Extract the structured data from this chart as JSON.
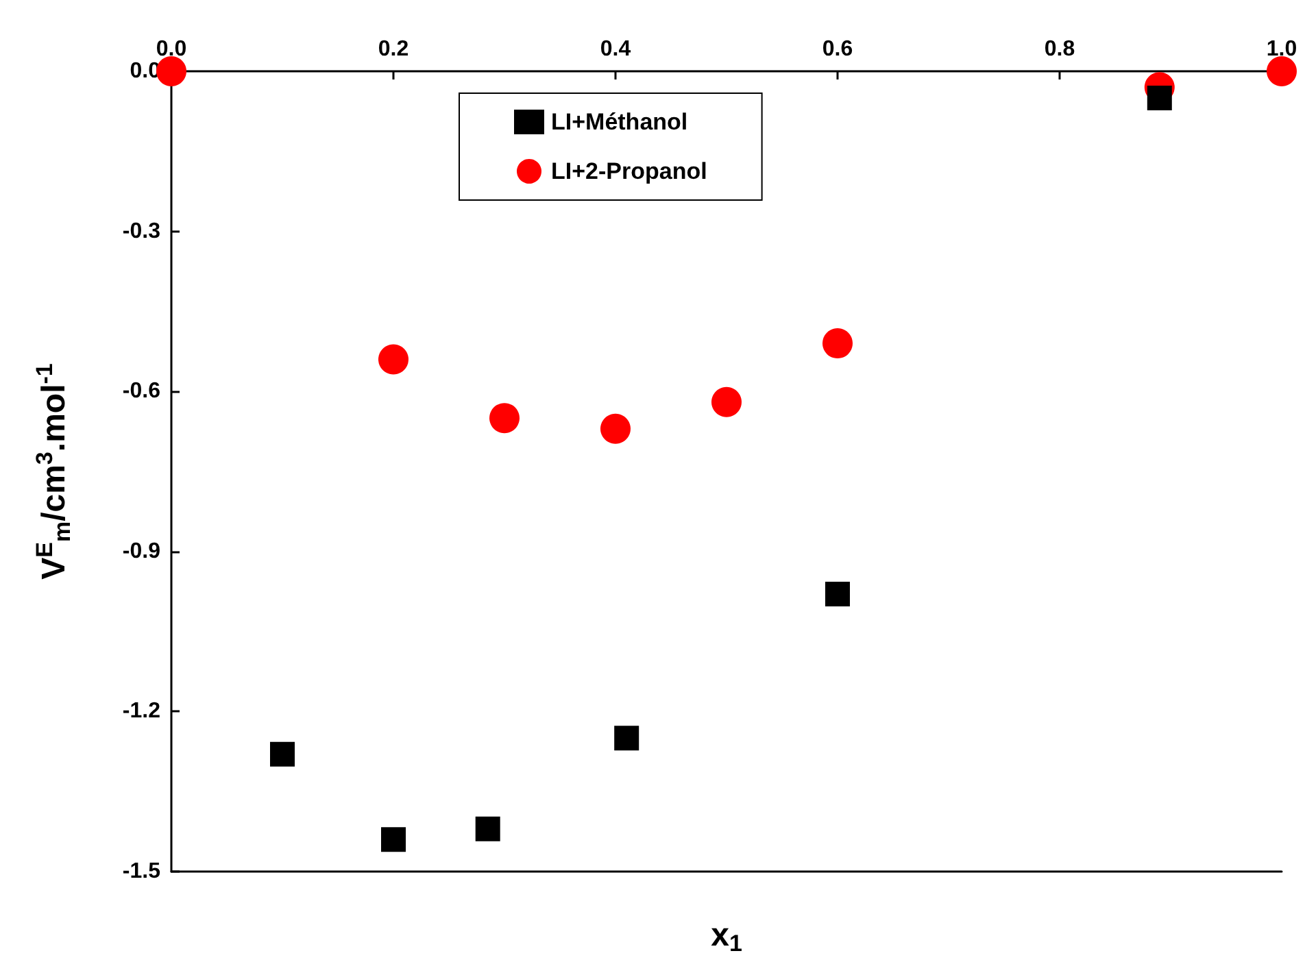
{
  "chart_data": {
    "type": "scatter",
    "xlabel": "x$_{1}$",
    "ylabel": "V$^{E}$$_{m}$/cm$^{3}$.mol$^{-1}$",
    "xlim": [
      0,
      1
    ],
    "xticks": [
      {
        "value": 0,
        "label": "0.0"
      },
      {
        "value": 0.2,
        "label": "0.2"
      },
      {
        "value": 0.4,
        "label": "0.4"
      },
      {
        "value": 0.6,
        "label": "0.6"
      },
      {
        "value": 0.8,
        "label": "0.8"
      },
      {
        "value": 1,
        "label": "1.0"
      }
    ],
    "ylim": [
      -1.5,
      0
    ],
    "yticks": [
      {
        "value": -1.5,
        "label": "-1.5"
      },
      {
        "value": -1.2,
        "label": "-1.2"
      },
      {
        "value": -0.9,
        "label": "-0.9"
      },
      {
        "value": -0.6,
        "label": "-0.6"
      },
      {
        "value": -0.3,
        "label": "-0.3"
      },
      {
        "value": 0,
        "label": "0.0"
      }
    ],
    "legend": "top",
    "grid": false,
    "series": [
      {
        "name": "LI+Méthanol",
        "color": "#000000",
        "marker": "square",
        "x": [
          0.1,
          0.2,
          0.285,
          0.41,
          0.6,
          0.89
        ],
        "values": [
          -1.28,
          -1.44,
          -1.42,
          -1.25,
          -0.98,
          -0.05
        ]
      },
      {
        "name": "LI+2-Propanol",
        "color": "#ff0000",
        "marker": "circle",
        "x": [
          0,
          0.2,
          0.3,
          0.4,
          0.5,
          0.6,
          0.89,
          1
        ],
        "values": [
          0,
          -0.54,
          -0.65,
          -0.67,
          -0.62,
          -0.51,
          -0.03,
          0
        ]
      }
    ]
  }
}
